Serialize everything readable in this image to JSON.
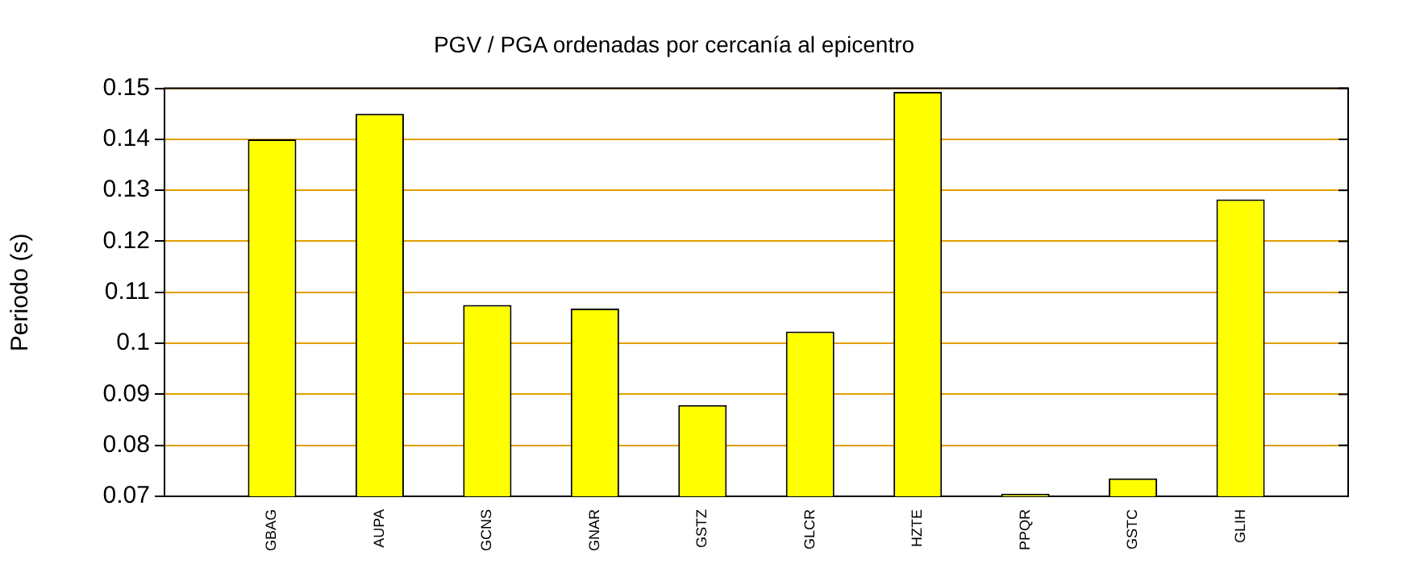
{
  "chart_data": {
    "type": "bar",
    "title": "PGV / PGA ordenadas por cercanía al epicentro",
    "ylabel": "Periodo (s)",
    "categories": [
      "GBAG",
      "AUPA",
      "GCNS",
      "GNAR",
      "GSTZ",
      "GLCR",
      "HZTE",
      "PPQR",
      "GSTC",
      "GLIH"
    ],
    "values": [
      0.14,
      0.145,
      0.1075,
      0.1068,
      0.0879,
      0.1023,
      0.1493,
      0.0705,
      0.0735,
      0.1282
    ],
    "color": "#ffff00",
    "ylim": [
      0.07,
      0.15
    ],
    "yticks": [
      0.07,
      0.08,
      0.09,
      0.1,
      0.11,
      0.12,
      0.13,
      0.14,
      0.15
    ],
    "grid": "y",
    "legend": false
  }
}
